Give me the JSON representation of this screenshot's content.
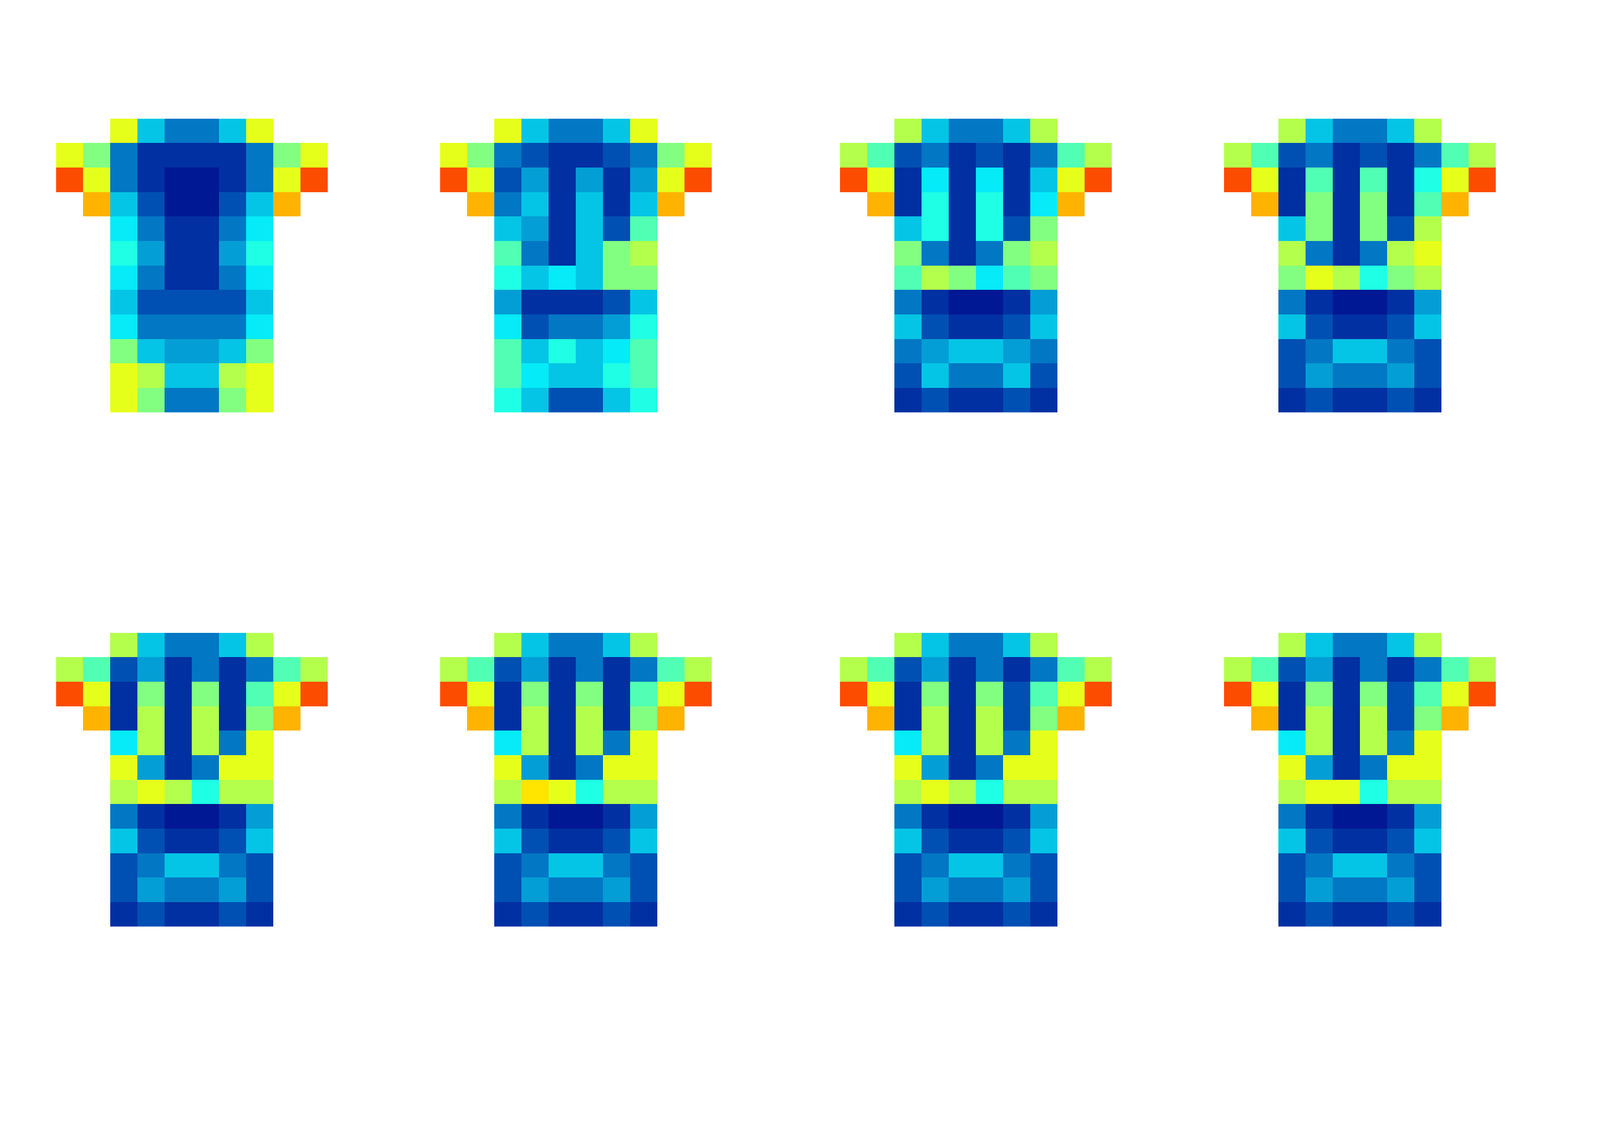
{
  "chart_data": [
    {
      "type": "heatmap",
      "color": "Jet",
      "zlim": [
        0,
        1
      ],
      "tick_labels": false,
      "z": [
        [
          null,
          null,
          0.6,
          0.3,
          0.2,
          0.2,
          0.3,
          0.6,
          null,
          null
        ],
        [
          0.6,
          0.5,
          0.2,
          0.1,
          0.1,
          0.1,
          0.1,
          0.2,
          0.5,
          0.6
        ],
        [
          0.8,
          0.6,
          0.2,
          0.1,
          0.05,
          0.05,
          0.1,
          0.2,
          0.6,
          0.8
        ],
        [
          null,
          0.7,
          0.3,
          0.15,
          0.05,
          0.05,
          0.15,
          0.3,
          0.7,
          null
        ],
        [
          null,
          null,
          0.35,
          0.2,
          0.1,
          0.1,
          0.2,
          0.35,
          null,
          null
        ],
        [
          null,
          null,
          0.4,
          0.25,
          0.1,
          0.1,
          0.25,
          0.4,
          null,
          null
        ],
        [
          null,
          null,
          0.35,
          0.2,
          0.1,
          0.1,
          0.2,
          0.35,
          null,
          null
        ],
        [
          null,
          null,
          0.3,
          0.15,
          0.15,
          0.15,
          0.15,
          0.3,
          null,
          null
        ],
        [
          null,
          null,
          0.35,
          0.2,
          0.2,
          0.2,
          0.2,
          0.35,
          null,
          null
        ],
        [
          null,
          null,
          0.5,
          0.3,
          0.25,
          0.25,
          0.3,
          0.5,
          null,
          null
        ],
        [
          null,
          null,
          0.6,
          0.55,
          0.3,
          0.3,
          0.55,
          0.6,
          null,
          null
        ],
        [
          null,
          null,
          0.6,
          0.5,
          0.2,
          0.2,
          0.5,
          0.6,
          null,
          null
        ]
      ]
    },
    {
      "type": "heatmap",
      "color": "Jet",
      "zlim": [
        0,
        1
      ],
      "tick_labels": false,
      "z": [
        [
          null,
          null,
          0.6,
          0.3,
          0.2,
          0.2,
          0.3,
          0.6,
          null,
          null
        ],
        [
          0.6,
          0.5,
          0.2,
          0.15,
          0.1,
          0.1,
          0.15,
          0.2,
          0.5,
          0.6
        ],
        [
          0.8,
          0.6,
          0.15,
          0.25,
          0.1,
          0.25,
          0.1,
          0.25,
          0.6,
          0.8
        ],
        [
          null,
          0.7,
          0.2,
          0.3,
          0.1,
          0.3,
          0.1,
          0.3,
          0.7,
          null
        ],
        [
          null,
          null,
          0.3,
          0.25,
          0.1,
          0.3,
          0.15,
          0.45,
          null,
          null
        ],
        [
          null,
          null,
          0.45,
          0.2,
          0.1,
          0.3,
          0.5,
          0.55,
          null,
          null
        ],
        [
          null,
          null,
          0.4,
          0.3,
          0.35,
          0.3,
          0.5,
          0.5,
          null,
          null
        ],
        [
          null,
          null,
          0.25,
          0.1,
          0.1,
          0.1,
          0.15,
          0.3,
          null,
          null
        ],
        [
          null,
          null,
          0.35,
          0.15,
          0.2,
          0.2,
          0.25,
          0.4,
          null,
          null
        ],
        [
          null,
          null,
          0.45,
          0.3,
          0.4,
          0.3,
          0.35,
          0.45,
          null,
          null
        ],
        [
          null,
          null,
          0.45,
          0.35,
          0.3,
          0.3,
          0.4,
          0.45,
          null,
          null
        ],
        [
          null,
          null,
          0.4,
          0.3,
          0.15,
          0.15,
          0.3,
          0.4,
          null,
          null
        ]
      ]
    },
    {
      "type": "heatmap",
      "color": "Jet",
      "zlim": [
        0,
        1
      ],
      "tick_labels": false,
      "z": [
        [
          null,
          null,
          0.55,
          0.3,
          0.2,
          0.2,
          0.3,
          0.55,
          null,
          null
        ],
        [
          0.55,
          0.45,
          0.15,
          0.2,
          0.1,
          0.15,
          0.1,
          0.2,
          0.45,
          0.55
        ],
        [
          0.8,
          0.6,
          0.1,
          0.35,
          0.1,
          0.35,
          0.1,
          0.3,
          0.6,
          0.8
        ],
        [
          null,
          0.7,
          0.1,
          0.4,
          0.1,
          0.4,
          0.1,
          0.35,
          0.7,
          null
        ],
        [
          null,
          null,
          0.3,
          0.4,
          0.1,
          0.4,
          0.15,
          0.5,
          null,
          null
        ],
        [
          null,
          null,
          0.5,
          0.2,
          0.1,
          0.2,
          0.5,
          0.55,
          null,
          null
        ],
        [
          null,
          null,
          0.45,
          0.55,
          0.5,
          0.35,
          0.45,
          0.5,
          null,
          null
        ],
        [
          null,
          null,
          0.2,
          0.1,
          0.05,
          0.05,
          0.1,
          0.25,
          null,
          null
        ],
        [
          null,
          null,
          0.3,
          0.15,
          0.1,
          0.1,
          0.15,
          0.3,
          null,
          null
        ],
        [
          null,
          null,
          0.2,
          0.25,
          0.3,
          0.3,
          0.25,
          0.2,
          null,
          null
        ],
        [
          null,
          null,
          0.15,
          0.3,
          0.2,
          0.2,
          0.3,
          0.15,
          null,
          null
        ],
        [
          null,
          null,
          0.1,
          0.15,
          0.1,
          0.1,
          0.15,
          0.1,
          null,
          null
        ]
      ]
    },
    {
      "type": "heatmap",
      "color": "Jet",
      "zlim": [
        0,
        1
      ],
      "tick_labels": false,
      "z": [
        [
          null,
          null,
          0.55,
          0.3,
          0.2,
          0.2,
          0.3,
          0.55,
          null,
          null
        ],
        [
          0.55,
          0.45,
          0.15,
          0.2,
          0.1,
          0.15,
          0.1,
          0.2,
          0.45,
          0.55
        ],
        [
          0.8,
          0.6,
          0.1,
          0.45,
          0.1,
          0.45,
          0.1,
          0.4,
          0.6,
          0.8
        ],
        [
          null,
          0.7,
          0.1,
          0.5,
          0.1,
          0.5,
          0.1,
          0.45,
          0.7,
          null
        ],
        [
          null,
          null,
          0.3,
          0.5,
          0.1,
          0.5,
          0.15,
          0.55,
          null,
          null
        ],
        [
          null,
          null,
          0.55,
          0.2,
          0.1,
          0.2,
          0.55,
          0.6,
          null,
          null
        ],
        [
          null,
          null,
          0.5,
          0.6,
          0.55,
          0.4,
          0.5,
          0.55,
          null,
          null
        ],
        [
          null,
          null,
          0.2,
          0.1,
          0.05,
          0.05,
          0.1,
          0.25,
          null,
          null
        ],
        [
          null,
          null,
          0.3,
          0.15,
          0.1,
          0.1,
          0.15,
          0.3,
          null,
          null
        ],
        [
          null,
          null,
          0.15,
          0.2,
          0.3,
          0.3,
          0.2,
          0.15,
          null,
          null
        ],
        [
          null,
          null,
          0.15,
          0.25,
          0.2,
          0.2,
          0.25,
          0.15,
          null,
          null
        ],
        [
          null,
          null,
          0.1,
          0.15,
          0.1,
          0.1,
          0.15,
          0.1,
          null,
          null
        ]
      ]
    },
    {
      "type": "heatmap",
      "color": "Jet",
      "zlim": [
        0,
        1
      ],
      "tick_labels": false,
      "z": [
        [
          null,
          null,
          0.55,
          0.3,
          0.2,
          0.2,
          0.3,
          0.55,
          null,
          null
        ],
        [
          0.55,
          0.45,
          0.15,
          0.25,
          0.1,
          0.2,
          0.1,
          0.2,
          0.45,
          0.55
        ],
        [
          0.8,
          0.6,
          0.1,
          0.5,
          0.1,
          0.5,
          0.1,
          0.45,
          0.6,
          0.8
        ],
        [
          null,
          0.7,
          0.1,
          0.55,
          0.1,
          0.55,
          0.1,
          0.5,
          0.7,
          null
        ],
        [
          null,
          null,
          0.35,
          0.55,
          0.1,
          0.55,
          0.2,
          0.6,
          null,
          null
        ],
        [
          null,
          null,
          0.6,
          0.25,
          0.1,
          0.2,
          0.6,
          0.6,
          null,
          null
        ],
        [
          null,
          null,
          0.55,
          0.6,
          0.55,
          0.4,
          0.55,
          0.55,
          null,
          null
        ],
        [
          null,
          null,
          0.2,
          0.1,
          0.05,
          0.05,
          0.1,
          0.25,
          null,
          null
        ],
        [
          null,
          null,
          0.3,
          0.15,
          0.1,
          0.1,
          0.15,
          0.3,
          null,
          null
        ],
        [
          null,
          null,
          0.15,
          0.2,
          0.3,
          0.3,
          0.2,
          0.15,
          null,
          null
        ],
        [
          null,
          null,
          0.15,
          0.25,
          0.2,
          0.2,
          0.25,
          0.15,
          null,
          null
        ],
        [
          null,
          null,
          0.1,
          0.15,
          0.1,
          0.1,
          0.15,
          0.1,
          null,
          null
        ]
      ]
    },
    {
      "type": "heatmap",
      "color": "Jet",
      "zlim": [
        0,
        1
      ],
      "tick_labels": false,
      "z": [
        [
          null,
          null,
          0.55,
          0.3,
          0.2,
          0.2,
          0.3,
          0.55,
          null,
          null
        ],
        [
          0.55,
          0.45,
          0.15,
          0.25,
          0.1,
          0.2,
          0.1,
          0.2,
          0.45,
          0.55
        ],
        [
          0.8,
          0.6,
          0.1,
          0.5,
          0.1,
          0.5,
          0.1,
          0.45,
          0.6,
          0.8
        ],
        [
          null,
          0.7,
          0.1,
          0.55,
          0.1,
          0.55,
          0.1,
          0.5,
          0.7,
          null
        ],
        [
          null,
          null,
          0.35,
          0.55,
          0.1,
          0.55,
          0.2,
          0.6,
          null,
          null
        ],
        [
          null,
          null,
          0.6,
          0.25,
          0.1,
          0.2,
          0.6,
          0.6,
          null,
          null
        ],
        [
          null,
          null,
          0.55,
          0.65,
          0.6,
          0.4,
          0.55,
          0.55,
          null,
          null
        ],
        [
          null,
          null,
          0.2,
          0.1,
          0.05,
          0.05,
          0.1,
          0.25,
          null,
          null
        ],
        [
          null,
          null,
          0.3,
          0.15,
          0.1,
          0.1,
          0.15,
          0.3,
          null,
          null
        ],
        [
          null,
          null,
          0.15,
          0.2,
          0.3,
          0.3,
          0.2,
          0.15,
          null,
          null
        ],
        [
          null,
          null,
          0.15,
          0.25,
          0.2,
          0.2,
          0.25,
          0.15,
          null,
          null
        ],
        [
          null,
          null,
          0.1,
          0.15,
          0.1,
          0.1,
          0.15,
          0.1,
          null,
          null
        ]
      ]
    },
    {
      "type": "heatmap",
      "color": "Jet",
      "zlim": [
        0,
        1
      ],
      "tick_labels": false,
      "z": [
        [
          null,
          null,
          0.55,
          0.3,
          0.2,
          0.2,
          0.3,
          0.55,
          null,
          null
        ],
        [
          0.55,
          0.45,
          0.15,
          0.25,
          0.1,
          0.2,
          0.1,
          0.2,
          0.45,
          0.55
        ],
        [
          0.8,
          0.6,
          0.1,
          0.5,
          0.1,
          0.5,
          0.15,
          0.45,
          0.6,
          0.8
        ],
        [
          null,
          0.7,
          0.1,
          0.55,
          0.1,
          0.55,
          0.15,
          0.5,
          0.7,
          null
        ],
        [
          null,
          null,
          0.35,
          0.55,
          0.1,
          0.55,
          0.2,
          0.6,
          null,
          null
        ],
        [
          null,
          null,
          0.6,
          0.25,
          0.1,
          0.2,
          0.6,
          0.6,
          null,
          null
        ],
        [
          null,
          null,
          0.55,
          0.6,
          0.55,
          0.4,
          0.55,
          0.55,
          null,
          null
        ],
        [
          null,
          null,
          0.2,
          0.1,
          0.05,
          0.05,
          0.1,
          0.25,
          null,
          null
        ],
        [
          null,
          null,
          0.3,
          0.15,
          0.1,
          0.1,
          0.15,
          0.3,
          null,
          null
        ],
        [
          null,
          null,
          0.15,
          0.2,
          0.3,
          0.3,
          0.2,
          0.15,
          null,
          null
        ],
        [
          null,
          null,
          0.15,
          0.25,
          0.2,
          0.2,
          0.25,
          0.15,
          null,
          null
        ],
        [
          null,
          null,
          0.1,
          0.15,
          0.1,
          0.1,
          0.15,
          0.1,
          null,
          null
        ]
      ]
    },
    {
      "type": "heatmap",
      "color": "Jet",
      "zlim": [
        0,
        1
      ],
      "tick_labels": false,
      "z": [
        [
          null,
          null,
          0.55,
          0.3,
          0.2,
          0.2,
          0.3,
          0.55,
          null,
          null
        ],
        [
          0.55,
          0.45,
          0.15,
          0.25,
          0.1,
          0.2,
          0.1,
          0.2,
          0.45,
          0.55
        ],
        [
          0.8,
          0.6,
          0.1,
          0.5,
          0.1,
          0.5,
          0.15,
          0.45,
          0.6,
          0.8
        ],
        [
          null,
          0.7,
          0.1,
          0.55,
          0.1,
          0.55,
          0.15,
          0.5,
          0.7,
          null
        ],
        [
          null,
          null,
          0.35,
          0.55,
          0.1,
          0.55,
          0.2,
          0.6,
          null,
          null
        ],
        [
          null,
          null,
          0.6,
          0.25,
          0.1,
          0.2,
          0.6,
          0.6,
          null,
          null
        ],
        [
          null,
          null,
          0.55,
          0.6,
          0.6,
          0.4,
          0.55,
          0.55,
          null,
          null
        ],
        [
          null,
          null,
          0.2,
          0.1,
          0.05,
          0.05,
          0.1,
          0.25,
          null,
          null
        ],
        [
          null,
          null,
          0.3,
          0.15,
          0.1,
          0.1,
          0.15,
          0.3,
          null,
          null
        ],
        [
          null,
          null,
          0.15,
          0.2,
          0.3,
          0.3,
          0.2,
          0.15,
          null,
          null
        ],
        [
          null,
          null,
          0.15,
          0.25,
          0.2,
          0.2,
          0.25,
          0.15,
          null,
          null
        ],
        [
          null,
          null,
          0.1,
          0.15,
          0.1,
          0.1,
          0.15,
          0.1,
          null,
          null
        ]
      ]
    }
  ]
}
